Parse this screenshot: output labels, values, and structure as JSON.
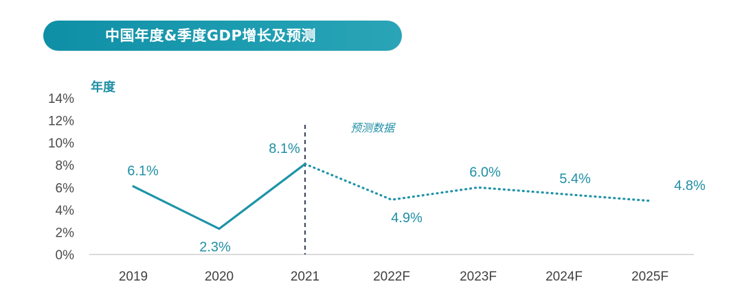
{
  "header": {
    "title": "中国年度&季度GDP增长及预测"
  },
  "chart_data": {
    "type": "line",
    "title": "中国年度&季度GDP增长及预测",
    "ylabel": "年度",
    "xlabel": "",
    "categories": [
      "2019",
      "2020",
      "2021",
      "2022F",
      "2023F",
      "2024F",
      "2025F"
    ],
    "values": [
      6.1,
      2.3,
      8.1,
      4.9,
      6.0,
      5.4,
      4.8
    ],
    "data_labels": [
      "6.1%",
      "2.3%",
      "8.1%",
      "4.9%",
      "6.0%",
      "5.4%",
      "4.8%"
    ],
    "actual_through": "2021",
    "forecast_note": "预测数据",
    "ylim": [
      0,
      14
    ],
    "yticks": [
      0,
      2,
      4,
      6,
      8,
      10,
      12,
      14
    ],
    "ytick_labels": [
      "0%",
      "2%",
      "4%",
      "6%",
      "8%",
      "10%",
      "12%",
      "14%"
    ],
    "grid": false,
    "legend": "none",
    "colors": {
      "line": "#1e93a8",
      "divider": "#1f2a44",
      "axis": "#cfcfcf",
      "label": "#1f8fa4",
      "banner": "#1a98ad"
    }
  }
}
